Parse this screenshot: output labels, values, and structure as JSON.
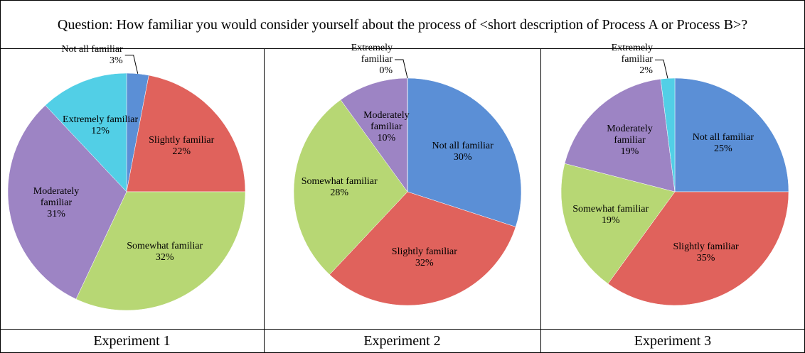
{
  "question": "Question: How familiar you would consider yourself about the process of <short description of Process A or Process B>?",
  "chart_data": [
    {
      "type": "pie",
      "title": "Experiment 1",
      "categories": [
        "Not all familiar",
        "Slightly familiar",
        "Somewhat familiar",
        "Moderately familiar",
        "Extremely familiar"
      ],
      "values": [
        3,
        22,
        32,
        31,
        12
      ],
      "value_labels": [
        "3%",
        "22%",
        "32%",
        "31%",
        "12%"
      ],
      "colors": [
        "#5b8fd6",
        "#e0625c",
        "#b7d774",
        "#9d84c4",
        "#52cfe6"
      ]
    },
    {
      "type": "pie",
      "title": "Experiment 2",
      "categories": [
        "Not all familiar",
        "Slightly familiar",
        "Somewhat familiar",
        "Moderately familiar",
        "Extremely familiar"
      ],
      "values": [
        30,
        32,
        28,
        10,
        0
      ],
      "value_labels": [
        "30%",
        "32%",
        "28%",
        "10%",
        "0%"
      ],
      "colors": [
        "#5b8fd6",
        "#e0625c",
        "#b7d774",
        "#9d84c4",
        "#52cfe6"
      ]
    },
    {
      "type": "pie",
      "title": "Experiment 3",
      "categories": [
        "Not all familiar",
        "Slightly familiar",
        "Somewhat familiar",
        "Moderately familiar",
        "Extremely familiar"
      ],
      "values": [
        25,
        35,
        19,
        19,
        2
      ],
      "value_labels": [
        "25%",
        "35%",
        "19%",
        "19%",
        "2%"
      ],
      "colors": [
        "#5b8fd6",
        "#e0625c",
        "#b7d774",
        "#9d84c4",
        "#52cfe6"
      ]
    }
  ]
}
